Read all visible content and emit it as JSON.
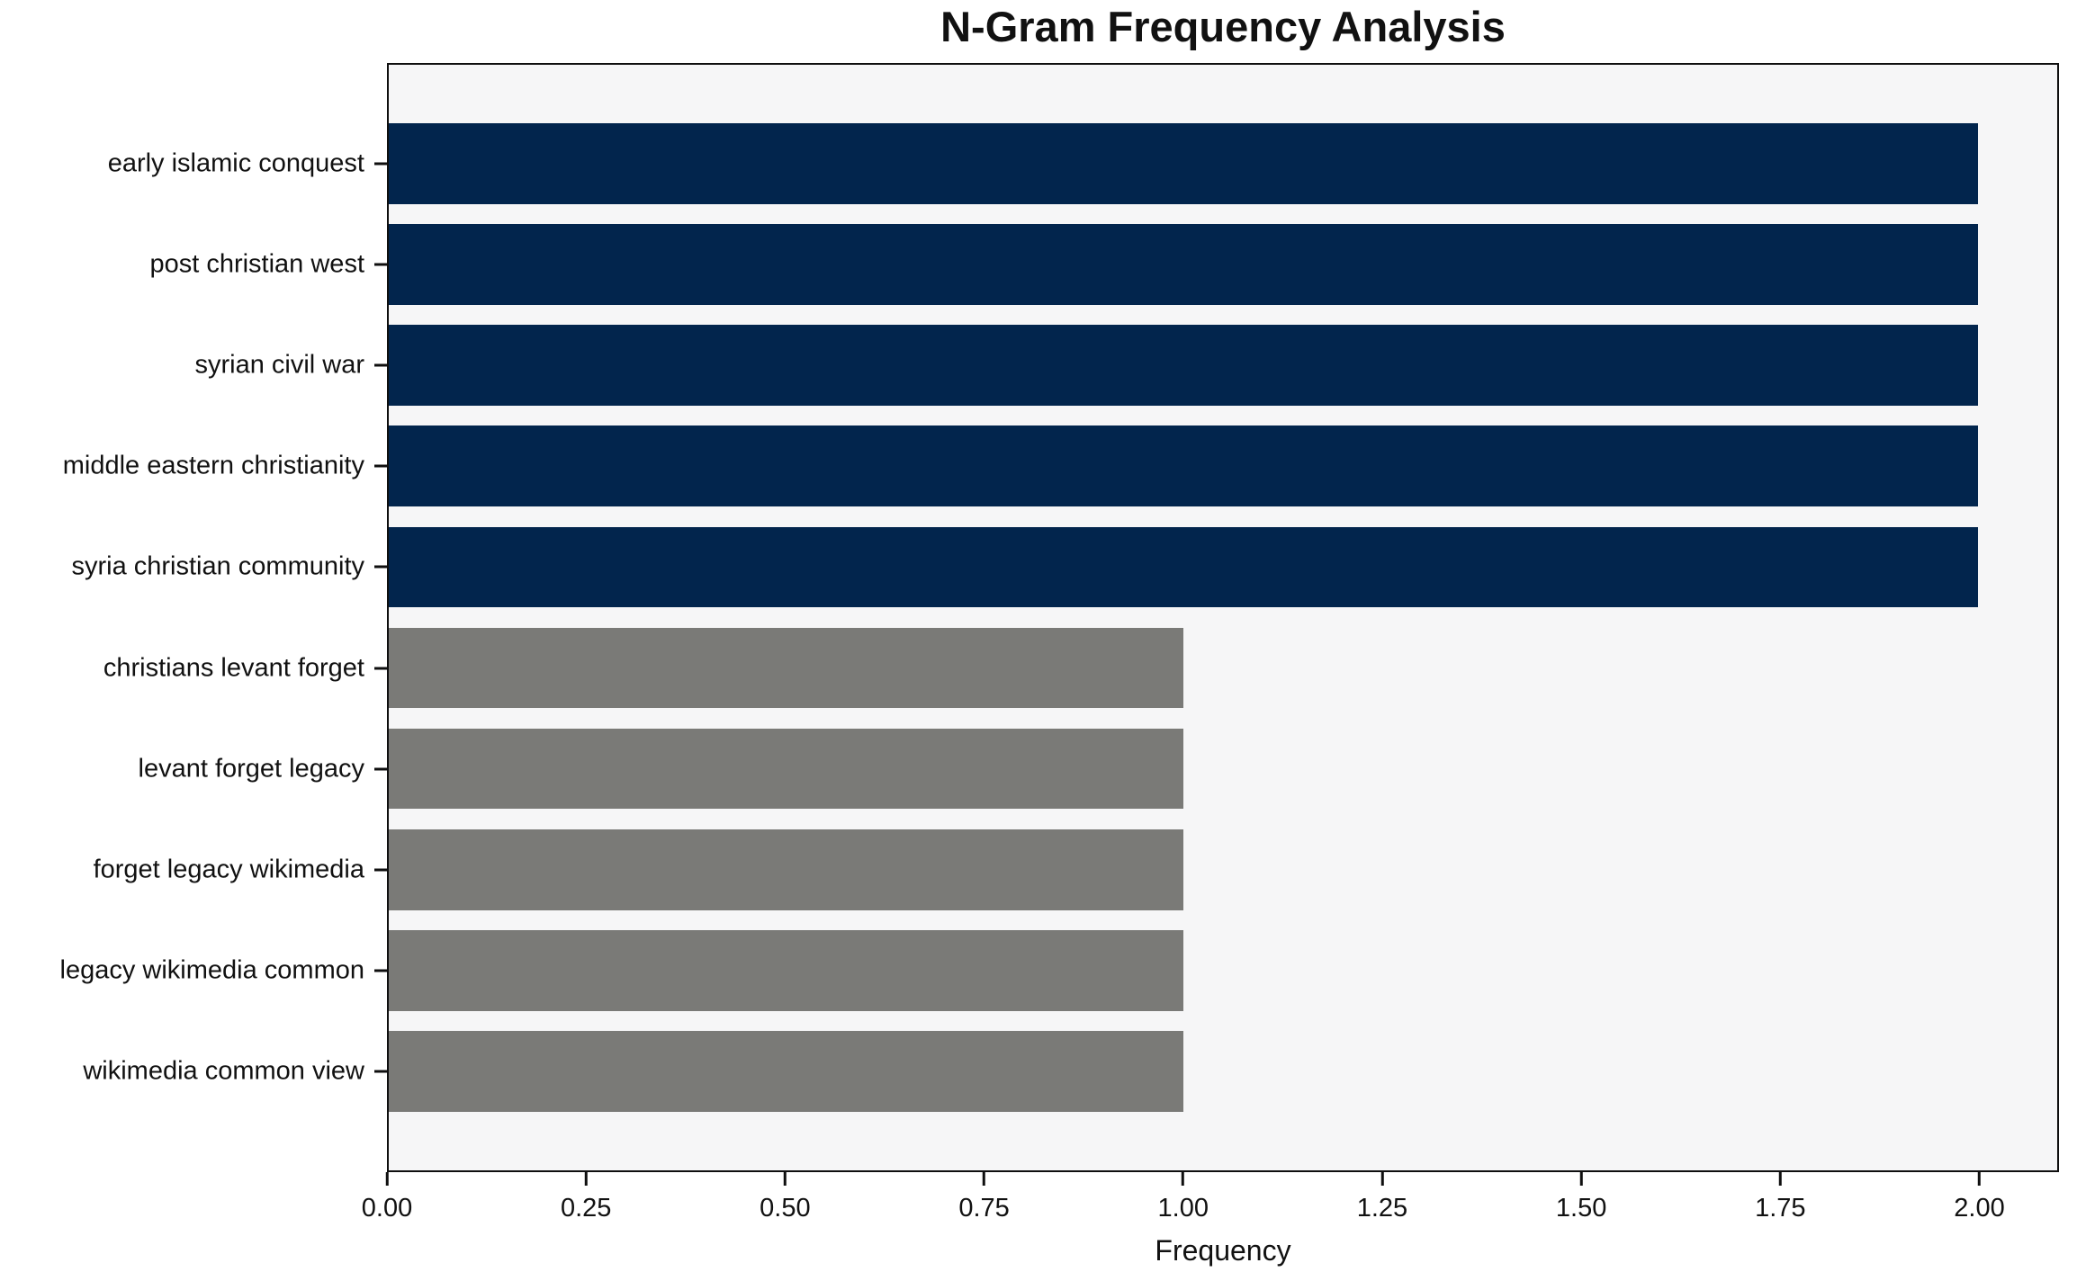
{
  "chart_data": {
    "type": "bar",
    "orientation": "horizontal",
    "title": "N-Gram Frequency Analysis",
    "xlabel": "Frequency",
    "ylabel": "",
    "categories": [
      "early islamic conquest",
      "post christian west",
      "syrian civil war",
      "middle eastern christianity",
      "syria christian community",
      "christians levant forget",
      "levant forget legacy",
      "forget legacy wikimedia",
      "legacy wikimedia common",
      "wikimedia common view"
    ],
    "values": [
      2,
      2,
      2,
      2,
      2,
      1,
      1,
      1,
      1,
      1
    ],
    "bar_colors": [
      "#02254d",
      "#02254d",
      "#02254d",
      "#02254d",
      "#02254d",
      "#7a7a77",
      "#7a7a77",
      "#7a7a77",
      "#7a7a77",
      "#7a7a77"
    ],
    "xlim": [
      0,
      2.1
    ],
    "xtick_values": [
      0,
      0.25,
      0.5,
      0.75,
      1.0,
      1.25,
      1.5,
      1.75,
      2.0
    ],
    "xticks": [
      "0.00",
      "0.25",
      "0.50",
      "0.75",
      "1.00",
      "1.25",
      "1.50",
      "1.75",
      "2.00"
    ],
    "grid": false,
    "legend": null,
    "colors": {
      "high_freq_bar": "#02254d",
      "low_freq_bar": "#7a7a77",
      "plot_background": "#f6f6f7",
      "figure_background": "#ffffff",
      "spine": "#0f0f0f",
      "text": "#111111"
    }
  }
}
